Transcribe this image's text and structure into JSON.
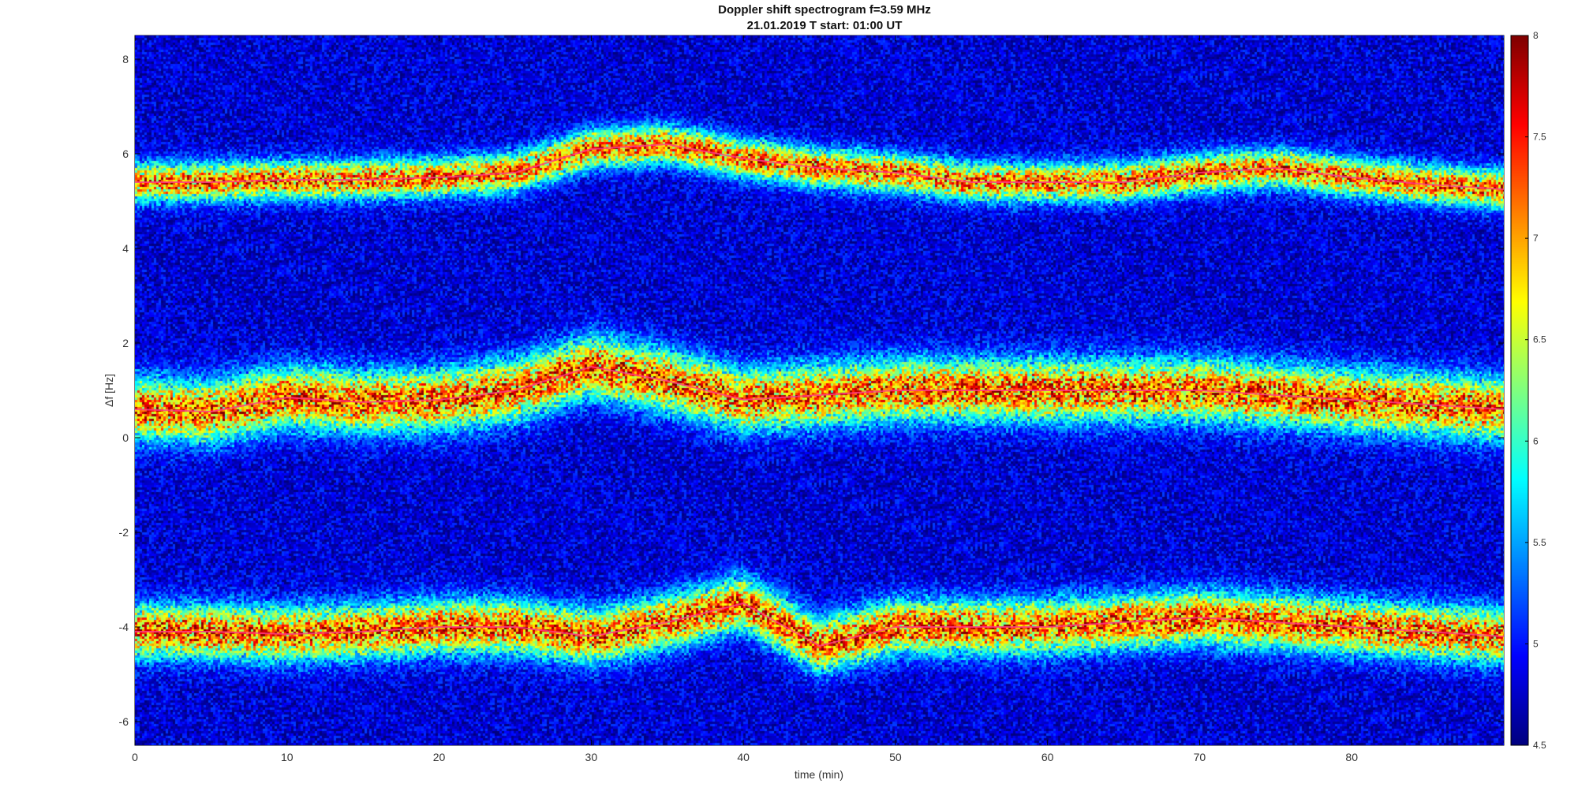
{
  "figure": {
    "title_line1": "Doppler shift spectrogram f=3.59 MHz",
    "title_line2": "21.01.2019    T start: 01:00 UT"
  },
  "chart_data": {
    "type": "heatmap",
    "title": "Doppler shift spectrogram f=3.59 MHz",
    "subtitle": "21.01.2019    T start: 01:00 UT",
    "xlabel": "time (min)",
    "ylabel": "Δf [Hz]",
    "xlim": [
      0,
      90
    ],
    "ylim": [
      -6.5,
      8.5
    ],
    "x_ticks": [
      0,
      10,
      20,
      30,
      40,
      50,
      60,
      70,
      80
    ],
    "y_ticks": [
      -6,
      -4,
      -2,
      0,
      2,
      4,
      6,
      8
    ],
    "colorbar": {
      "colormap": "jet",
      "range": [
        4.5,
        8
      ],
      "ticks": [
        4.5,
        5,
        5.5,
        6,
        6.5,
        7,
        7.5,
        8
      ]
    },
    "background_level": 4.8,
    "bands": [
      {
        "ridge_time": [
          0,
          5,
          10,
          15,
          20,
          25,
          30,
          35,
          40,
          45,
          50,
          55,
          60,
          65,
          70,
          75,
          80,
          85,
          90
        ],
        "ridge_df": [
          5.4,
          5.4,
          5.45,
          5.45,
          5.5,
          5.6,
          6.1,
          6.2,
          5.9,
          5.7,
          5.6,
          5.4,
          5.4,
          5.4,
          5.6,
          5.7,
          5.5,
          5.35,
          5.25
        ],
        "width_hz": 1.0,
        "peak_level": 7.5
      },
      {
        "ridge_time": [
          0,
          5,
          10,
          15,
          20,
          25,
          30,
          35,
          40,
          45,
          50,
          55,
          60,
          65,
          70,
          75,
          80,
          85,
          90
        ],
        "ridge_df": [
          0.6,
          0.55,
          0.85,
          0.75,
          0.8,
          1.0,
          1.5,
          1.2,
          0.8,
          0.9,
          1.0,
          1.0,
          1.0,
          1.0,
          1.0,
          0.9,
          0.8,
          0.7,
          0.6
        ],
        "width_hz": 1.6,
        "peak_level": 7.6
      },
      {
        "ridge_time": [
          0,
          5,
          10,
          15,
          20,
          25,
          30,
          35,
          40,
          45,
          50,
          55,
          60,
          65,
          70,
          75,
          80,
          85,
          90
        ],
        "ridge_df": [
          -4.1,
          -4.1,
          -4.15,
          -4.1,
          -4.0,
          -4.0,
          -4.2,
          -3.9,
          -3.5,
          -4.4,
          -4.0,
          -4.0,
          -4.0,
          -3.9,
          -3.8,
          -3.9,
          -4.0,
          -4.1,
          -4.2
        ],
        "width_hz": 1.4,
        "peak_level": 7.6
      }
    ]
  }
}
